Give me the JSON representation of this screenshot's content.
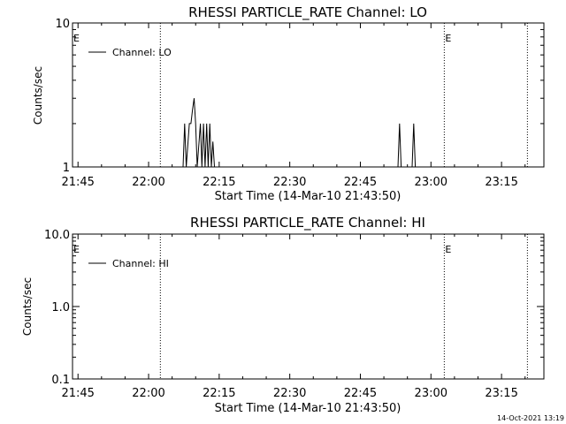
{
  "chart_data": [
    {
      "type": "line",
      "title": "RHESSI PARTICLE_RATE Channel: LO",
      "xlabel": "Start Time (14-Mar-10 21:43:50)",
      "ylabel": "Counts/sec",
      "yscale": "log",
      "ylim": [
        1,
        10
      ],
      "ytick_labels": [
        "1",
        "10"
      ],
      "xlim": [
        "21:43:50",
        "23:24:00"
      ],
      "xtick_labels": [
        "21:45",
        "22:00",
        "22:15",
        "22:30",
        "22:45",
        "23:00",
        "23:15"
      ],
      "legend": [
        "Channel: LO"
      ],
      "legend_position": "top-left",
      "markers": [
        {
          "label": "E",
          "time": "21:43:50"
        },
        {
          "label": "E",
          "time": "23:02:50"
        }
      ],
      "event_lines": [
        "22:02:30",
        "23:02:50",
        "23:20:30"
      ],
      "series": [
        {
          "name": "Channel: LO",
          "points": [
            [
              "22:07:20",
              1
            ],
            [
              "22:07:40",
              2
            ],
            [
              "22:08:00",
              1
            ],
            [
              "22:08:40",
              2
            ],
            [
              "22:09:00",
              2
            ],
            [
              "22:09:20",
              2.5
            ],
            [
              "22:09:40",
              3
            ],
            [
              "22:10:00",
              2
            ],
            [
              "22:10:20",
              1
            ],
            [
              "22:11:00",
              2
            ],
            [
              "22:11:20",
              1
            ],
            [
              "22:11:40",
              2
            ],
            [
              "22:12:00",
              1
            ],
            [
              "22:12:20",
              2
            ],
            [
              "22:12:40",
              1
            ],
            [
              "22:13:00",
              2
            ],
            [
              "22:13:20",
              1
            ],
            [
              "22:13:40",
              1.5
            ],
            [
              "22:14:00",
              1
            ],
            [
              "22:53:00",
              1
            ],
            [
              "22:53:20",
              2
            ],
            [
              "22:53:40",
              1
            ],
            [
              "22:56:00",
              1
            ],
            [
              "22:56:20",
              2
            ],
            [
              "22:56:40",
              1
            ]
          ]
        }
      ]
    },
    {
      "type": "line",
      "title": "RHESSI PARTICLE_RATE Channel: HI",
      "xlabel": "Start Time (14-Mar-10 21:43:50)",
      "ylabel": "Counts/sec",
      "yscale": "log",
      "ylim": [
        0.1,
        10
      ],
      "ytick_labels": [
        "0.1",
        "1.0",
        "10.0"
      ],
      "xlim": [
        "21:43:50",
        "23:24:00"
      ],
      "xtick_labels": [
        "21:45",
        "22:00",
        "22:15",
        "22:30",
        "22:45",
        "23:00",
        "23:15"
      ],
      "legend": [
        "Channel: HI"
      ],
      "legend_position": "top-left",
      "markers": [
        {
          "label": "E",
          "time": "21:43:50"
        },
        {
          "label": "E",
          "time": "23:02:50"
        }
      ],
      "event_lines": [
        "22:02:30",
        "23:02:50",
        "23:20:30"
      ],
      "series": [
        {
          "name": "Channel: HI",
          "points": []
        }
      ]
    }
  ],
  "footer": {
    "timestamp": "14-Oct-2021 13:19"
  }
}
